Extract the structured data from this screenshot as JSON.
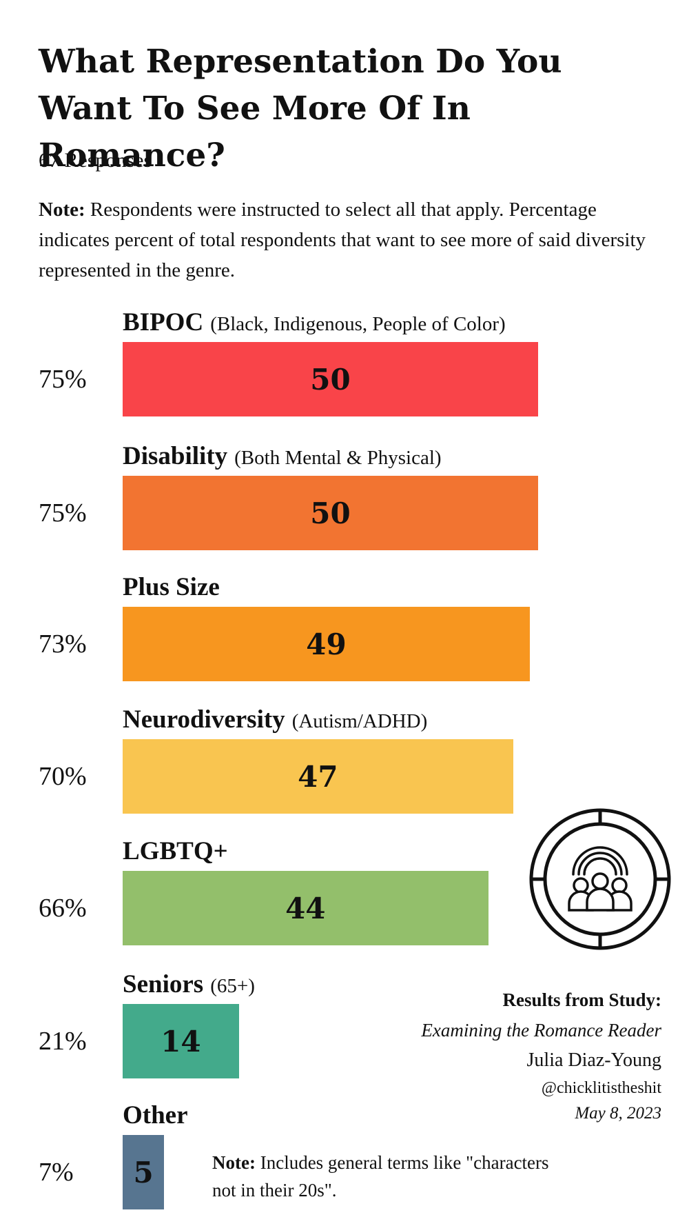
{
  "title": "What Representation Do You Want To See More Of In Romance?",
  "responses": "67 Responses",
  "note": {
    "label": "Note:",
    "text": "Respondents were instructed to select all that apply. Percentage indicates percent of total respondents that want to see more of said diversity represented in the genre."
  },
  "chart_data": {
    "type": "bar",
    "orientation": "horizontal",
    "total_respondents": 67,
    "categories": [
      "BIPOC",
      "Disability",
      "Plus Size",
      "Neurodiversity",
      "LGBTQ+",
      "Seniors",
      "Other"
    ],
    "qualifiers": [
      "(Black, Indigenous, People of Color)",
      "(Both Mental & Physical)",
      "",
      "(Autism/ADHD)",
      "",
      "(65+)",
      ""
    ],
    "values": [
      50,
      50,
      49,
      47,
      44,
      14,
      5
    ],
    "value_labels": [
      "50",
      "50",
      "49",
      "47",
      "44",
      "14",
      "5"
    ],
    "percentages": [
      "75%",
      "75%",
      "73%",
      "70%",
      "66%",
      "21%",
      "7%"
    ],
    "colors": [
      "#f94449",
      "#f27431",
      "#f7961f",
      "#f9c550",
      "#93bf6b",
      "#43aa8b",
      "#577590"
    ],
    "xlim": [
      0,
      67
    ]
  },
  "other_note": {
    "label": "Note:",
    "text": "Includes general terms like \"characters not in their 20s\"."
  },
  "credits": {
    "heading": "Results from Study:",
    "study": "Examining the Romance Reader",
    "author": "Julia Diaz-Young",
    "handle": "@chicklitistheshit",
    "date": "May 8, 2023"
  },
  "emblem_icon": "diverse-people-rainbow-icon"
}
